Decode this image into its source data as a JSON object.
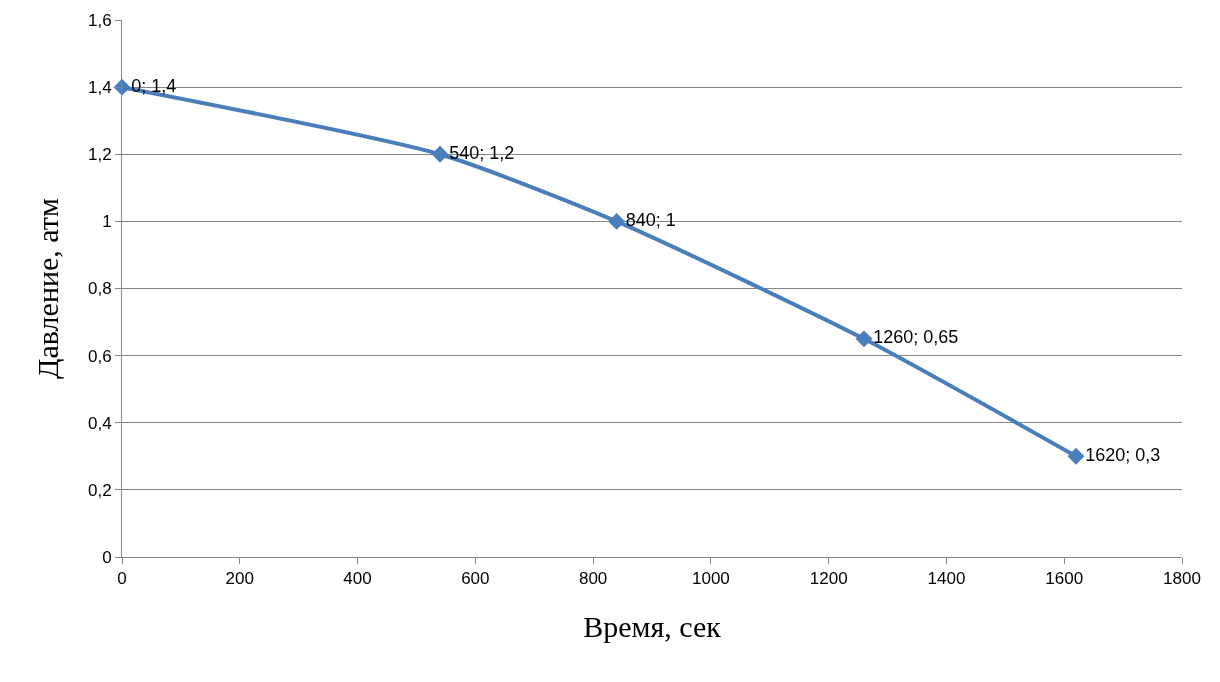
{
  "chart_data": {
    "type": "line",
    "xlabel": "Время, сек",
    "ylabel": "Давление, атм",
    "x": [
      0,
      540,
      840,
      1260,
      1620
    ],
    "series": [
      {
        "color": "#4a7ebb",
        "values": [
          1.4,
          1.2,
          1.0,
          0.65,
          0.3
        ],
        "value_labels": [
          "0; 1,4",
          "540; 1,2",
          "840; 1",
          "1260; 0,65",
          "1620; 0,3"
        ]
      }
    ],
    "xlim": [
      0,
      1800
    ],
    "xticks": [
      0,
      200,
      400,
      600,
      800,
      1000,
      1200,
      1400,
      1600,
      1800
    ],
    "ylim": [
      0,
      1.6
    ],
    "yticks": [
      0,
      {
        "value": 0.2,
        "label": "0,2"
      },
      {
        "value": 0.4,
        "label": "0,4"
      },
      {
        "value": 0.6,
        "label": "0,6"
      },
      {
        "value": 0.8,
        "label": "0,8"
      },
      1,
      {
        "value": 1.2,
        "label": "1,2"
      },
      {
        "value": 1.4,
        "label": "1,4"
      },
      {
        "value": 1.6,
        "label": "1,6"
      }
    ],
    "grid": "y",
    "marker": "diamond"
  }
}
